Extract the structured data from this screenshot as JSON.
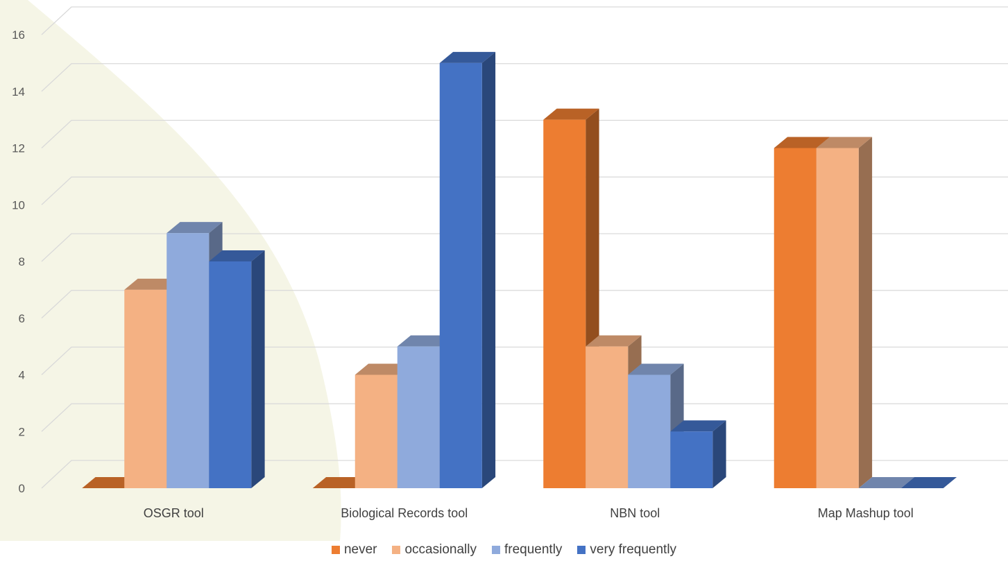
{
  "chart_data": {
    "type": "bar",
    "title": "",
    "xlabel": "",
    "ylabel": "",
    "categories": [
      "OSGR tool",
      "Biological Records tool",
      "NBN tool",
      "Map Mashup tool"
    ],
    "series": [
      {
        "name": "never",
        "values": [
          0,
          0,
          13,
          12
        ],
        "color": "#ED7D31"
      },
      {
        "name": "occasionally",
        "values": [
          7,
          4,
          5,
          12
        ],
        "color": "#F4B183"
      },
      {
        "name": "frequently",
        "values": [
          9,
          5,
          4,
          0
        ],
        "color": "#8FAADC"
      },
      {
        "name": "very frequently",
        "values": [
          8,
          15,
          2,
          0
        ],
        "color": "#4472C4"
      }
    ],
    "ylim": [
      0,
      16
    ],
    "yticks": [
      "0",
      "2",
      "4",
      "6",
      "8",
      "10",
      "12",
      "14",
      "16"
    ],
    "grid": true,
    "legend_position": "bottom",
    "style": "3d-clustered-column",
    "background_color": "#F5F5E6"
  }
}
